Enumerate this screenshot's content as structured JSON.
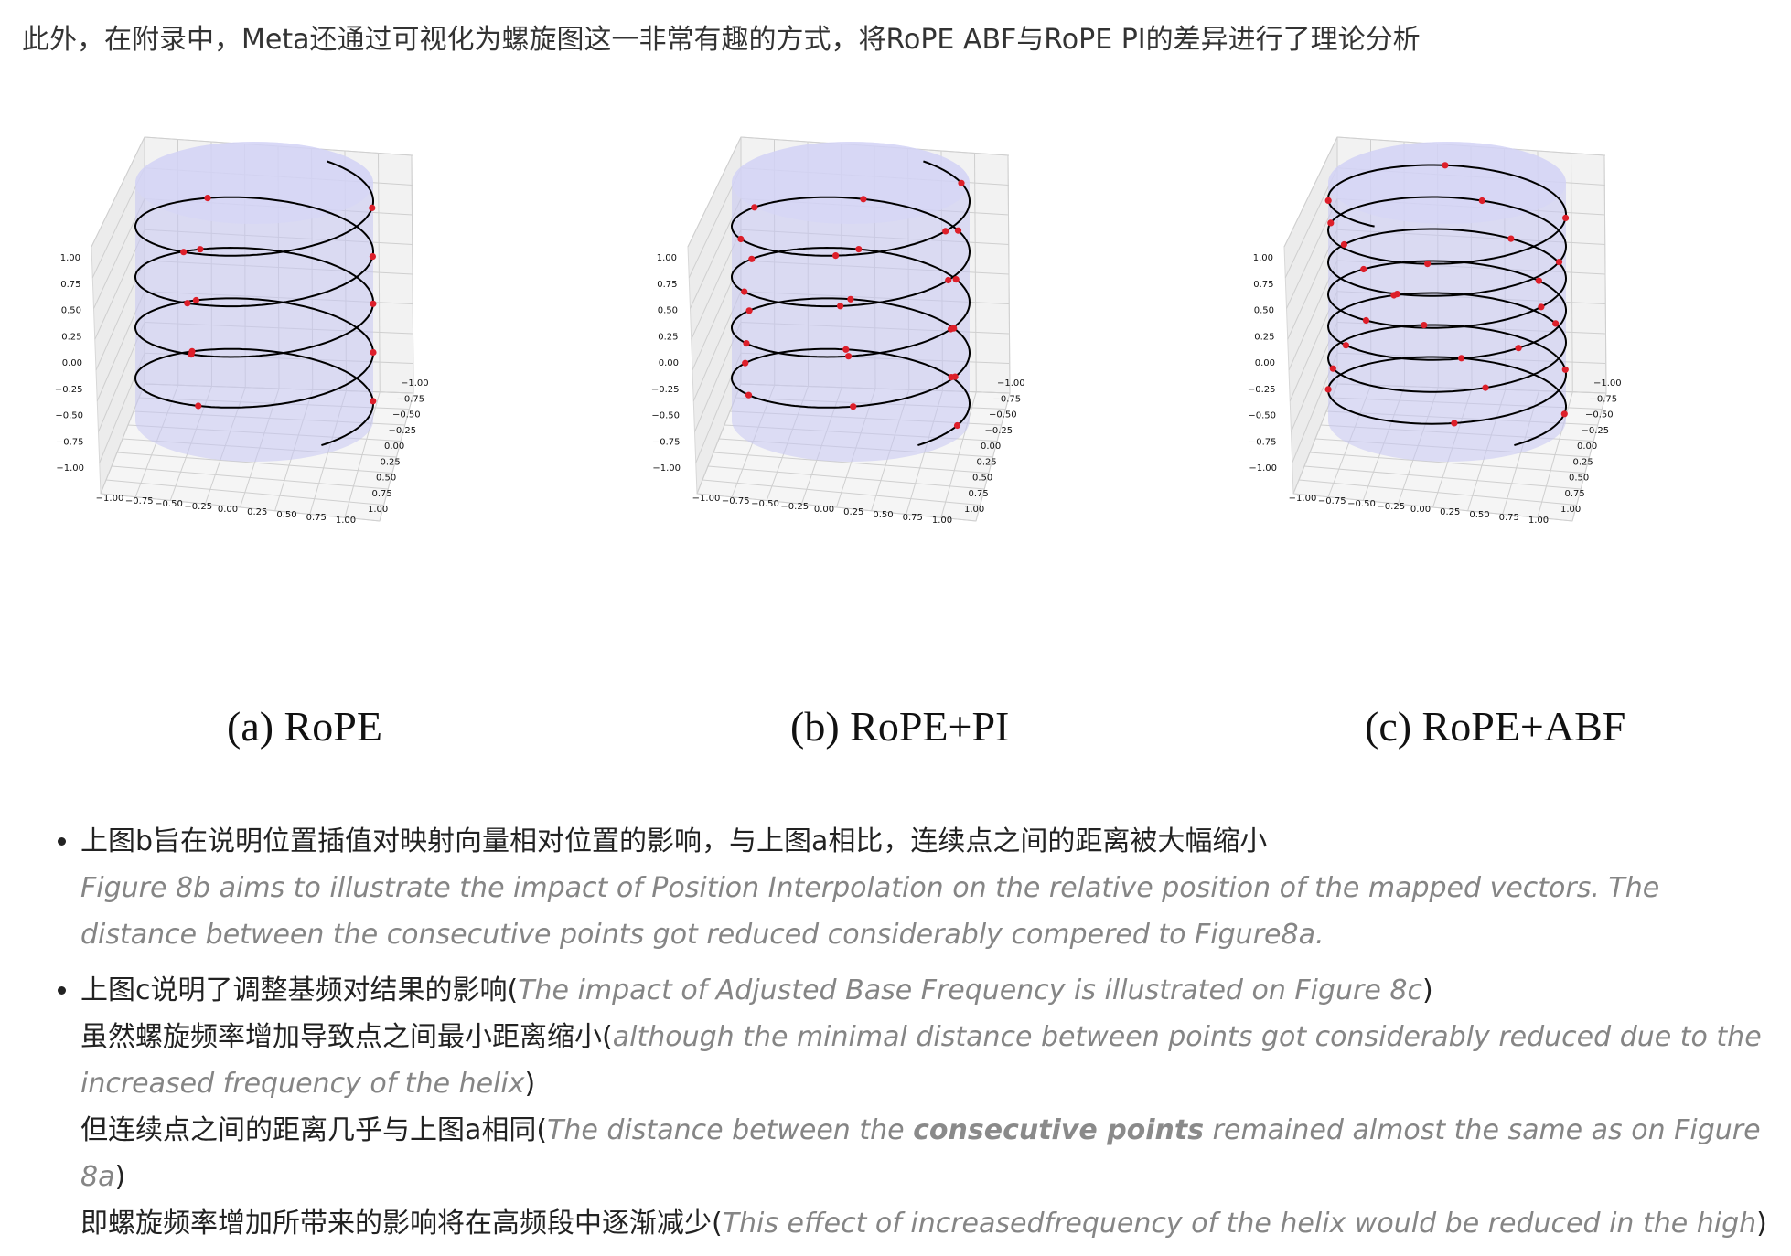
{
  "intro": "此外，在附录中，Meta还通过可视化为螺旋图这一非常有趣的方式，将RoPE ABF与RoPE PI的差异进行了理论分析",
  "figures": [
    {
      "caption": "(a) RoPE",
      "turns": 4.3,
      "points": 13
    },
    {
      "caption": "(b) RoPE+PI",
      "turns": 4.3,
      "points": 26
    },
    {
      "caption": "(c) RoPE+ABF",
      "turns": 6.8,
      "points": 26
    }
  ],
  "axis_ticks": {
    "z": [
      "1.00",
      "0.75",
      "0.50",
      "0.25",
      "0.00",
      "−0.25",
      "−0.50",
      "−0.75",
      "−1.00"
    ],
    "x": [
      "−1.00",
      "−0.75",
      "−0.50",
      "−0.25",
      "0.00",
      "0.25",
      "0.50",
      "0.75",
      "1.00"
    ],
    "y": [
      "−1.00",
      "−0.75",
      "−0.50",
      "−0.25",
      "0.00",
      "0.25",
      "0.50",
      "0.75",
      "1.00"
    ]
  },
  "colors": {
    "helix": "#000000",
    "points": "#dd1f2a",
    "cylinder": "#c7c7f2",
    "grid": "#cfcfcf",
    "pane": "#f2f2f2"
  },
  "bullets": [
    {
      "zh": "上图b旨在说明位置插值对映射向量相对位置的影响，与上图a相比，连续点之间的距离被大幅缩小",
      "en": "Figure 8b aims to illustrate the impact of Position Interpolation on the relative position of the mapped vectors. The distance between the consecutive points got reduced considerably compered to Figure8a."
    },
    {
      "line1_zh": "上图c说明了调整基频对结果的影响(",
      "line1_en": "The impact of Adjusted Base Frequency is illustrated on Figure 8c",
      "line2_zh": "虽然螺旋频率增加导致点之间最小距离缩小(",
      "line2_en": "although the minimal distance between points got considerably reduced due to the increased frequency of the helix",
      "line3_zh": "但连续点之间的距离几乎与上图a相同(",
      "line3_en_a": "The distance between the ",
      "line3_en_bold": "consecutive points",
      "line3_en_b": " remained almost the same as on Figure 8a",
      "line4_zh": "即螺旋频率增加所带来的影响将在高频段中逐渐减少(",
      "line4_en": "This effect of increasedfrequency of the helix would be reduced in the high",
      "close": ")"
    }
  ]
}
